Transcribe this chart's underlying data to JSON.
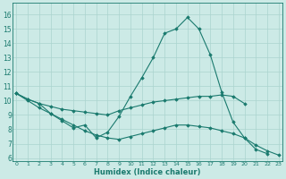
{
  "xlabel": "Humidex (Indice chaleur)",
  "bg_color": "#cceae6",
  "grid_color": "#aad4cf",
  "line_color": "#1a7a6e",
  "x_ticks": [
    0,
    1,
    2,
    3,
    4,
    5,
    6,
    7,
    8,
    9,
    10,
    11,
    12,
    13,
    14,
    15,
    16,
    17,
    18,
    19,
    20,
    21,
    22,
    23
  ],
  "y_ticks": [
    6,
    7,
    8,
    9,
    10,
    11,
    12,
    13,
    14,
    15,
    16
  ],
  "xlim": [
    -0.3,
    23.3
  ],
  "ylim": [
    5.8,
    16.8
  ],
  "line1_x": [
    0,
    1,
    2,
    3,
    4,
    5,
    6,
    7,
    8,
    9,
    10,
    11,
    12,
    13,
    14,
    15,
    16,
    17,
    18,
    19,
    20,
    21,
    22
  ],
  "line1_y": [
    10.5,
    10.1,
    9.8,
    9.1,
    8.6,
    8.1,
    8.3,
    7.4,
    7.8,
    8.9,
    10.3,
    11.6,
    13.0,
    14.7,
    15.0,
    15.8,
    15.0,
    13.2,
    10.6,
    8.5,
    7.4,
    6.6,
    6.3
  ],
  "line2_x": [
    0,
    1,
    2,
    3,
    4,
    5,
    6,
    7,
    8,
    9,
    10,
    11,
    12,
    13,
    14,
    15,
    16,
    17,
    18,
    19,
    20
  ],
  "line2_y": [
    10.5,
    10.1,
    9.8,
    9.6,
    9.4,
    9.3,
    9.2,
    9.1,
    9.0,
    9.3,
    9.5,
    9.7,
    9.9,
    10.0,
    10.1,
    10.2,
    10.3,
    10.3,
    10.4,
    10.3,
    9.8
  ],
  "line3_x": [
    0,
    1,
    2,
    3,
    4,
    5,
    6,
    7,
    8,
    9,
    10,
    11,
    12,
    13,
    14,
    15,
    16,
    17,
    18,
    19,
    20,
    21,
    22,
    23
  ],
  "line3_y": [
    10.5,
    10.0,
    9.5,
    9.1,
    8.7,
    8.3,
    7.9,
    7.6,
    7.4,
    7.3,
    7.5,
    7.7,
    7.9,
    8.1,
    8.3,
    8.3,
    8.2,
    8.1,
    7.9,
    7.7,
    7.4,
    6.9,
    6.5,
    6.2
  ]
}
